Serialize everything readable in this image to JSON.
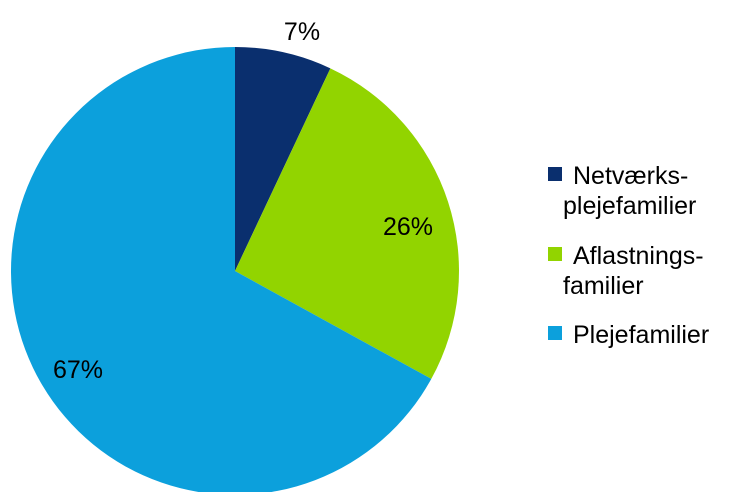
{
  "chart_data": {
    "type": "pie",
    "title": "",
    "legend_position": "right",
    "slices": [
      {
        "label_lines": [
          "Netværks-",
          "plejefamilier"
        ],
        "value": 7,
        "value_label": "7%",
        "color": "#0a2f6e"
      },
      {
        "label_lines": [
          "Aflastnings-",
          "familier"
        ],
        "value": 26,
        "value_label": "26%",
        "color": "#92d400"
      },
      {
        "label_lines": [
          "Plejefamilier"
        ],
        "value": 67,
        "value_label": "67%",
        "color": "#0ca0dc"
      }
    ]
  }
}
